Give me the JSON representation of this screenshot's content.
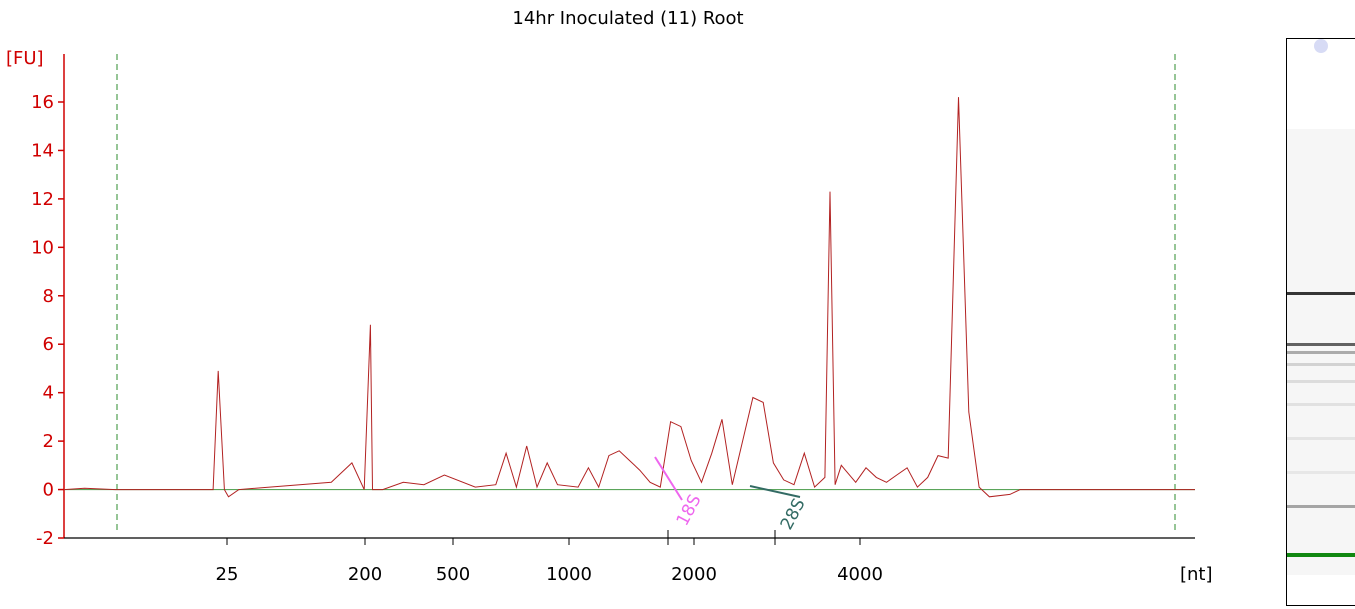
{
  "chart_data": {
    "type": "line",
    "title": "14hr Inoculated (11) Root",
    "ylabel": "[FU]",
    "xlabel": "[nt]",
    "ylim": [
      -2,
      17
    ],
    "yticks": [
      -2,
      0,
      2,
      4,
      6,
      8,
      10,
      12,
      14,
      16
    ],
    "ytick_labels": [
      "-2",
      "0",
      "2",
      "4",
      "6",
      "8",
      "10",
      "12",
      "14",
      "16"
    ],
    "xtick_labels": [
      "25",
      "200",
      "500",
      "1000",
      "2000",
      "4000"
    ],
    "x_axis_note": "non-linear size axis (nt)",
    "series": [
      {
        "color": "#b22222",
        "x": [
          0,
          2,
          5,
          10,
          14.5,
          15,
          15.6,
          16,
          17,
          20,
          26,
          28,
          29.2,
          29.8,
          30,
          31,
          33,
          35,
          37,
          40,
          42,
          43,
          44,
          45,
          46,
          47,
          48,
          50,
          51,
          52,
          53,
          54,
          55,
          56,
          57,
          58,
          59,
          60,
          61,
          62,
          63,
          64,
          65,
          67,
          68,
          69,
          70,
          71,
          72,
          73,
          74,
          74.5,
          75,
          75.6,
          76,
          77,
          78,
          79,
          80,
          81,
          82,
          83,
          84,
          85,
          86,
          87,
          88,
          89,
          90,
          92,
          93,
          95,
          100,
          103,
          110
        ],
        "y": [
          0,
          0.05,
          0,
          0,
          0,
          4.9,
          0,
          -0.3,
          0,
          0.1,
          0.3,
          1.1,
          0,
          6.8,
          0,
          0,
          0.3,
          0.2,
          0.6,
          0.1,
          0.2,
          1.5,
          0.1,
          1.8,
          0.1,
          1.1,
          0.2,
          0.1,
          0.9,
          0.1,
          1.4,
          1.6,
          1.2,
          0.8,
          0.3,
          0.1,
          2.8,
          2.6,
          1.2,
          0.3,
          1.5,
          2.9,
          0.2,
          3.8,
          3.6,
          1.1,
          0.4,
          0.2,
          1.5,
          0.1,
          0.5,
          12.3,
          0.2,
          1.0,
          0.8,
          0.3,
          0.9,
          0.5,
          0.3,
          0.6,
          0.9,
          0.1,
          0.5,
          1.4,
          1.3,
          16.2,
          3.2,
          0.1,
          -0.3,
          -0.2,
          0,
          0,
          0,
          0,
          0
        ]
      }
    ],
    "baseline": {
      "y": 0,
      "color": "#5aa55a"
    },
    "markers": [
      {
        "label": "18S",
        "color": "#ee66ee"
      },
      {
        "label": "28S",
        "color": "#336b64"
      }
    ],
    "grid": false,
    "legend": "none"
  },
  "gel": {
    "bands": [
      {
        "pos": 0.445,
        "intensity": 0.9,
        "color": "#202020"
      },
      {
        "pos": 0.535,
        "intensity": 0.75,
        "color": "#303030"
      },
      {
        "pos": 0.55,
        "intensity": 0.5,
        "color": "#606060"
      },
      {
        "pos": 0.57,
        "intensity": 0.35,
        "color": "#909090"
      },
      {
        "pos": 0.6,
        "intensity": 0.25,
        "color": "#a0a0a0"
      },
      {
        "pos": 0.64,
        "intensity": 0.2,
        "color": "#b0b0b0"
      },
      {
        "pos": 0.7,
        "intensity": 0.2,
        "color": "#bbbbbb"
      },
      {
        "pos": 0.76,
        "intensity": 0.2,
        "color": "#c4c4c4"
      },
      {
        "pos": 0.82,
        "intensity": 0.6,
        "color": "#707070"
      },
      {
        "pos": 0.905,
        "intensity": 1.0,
        "color": "#118811"
      }
    ]
  }
}
